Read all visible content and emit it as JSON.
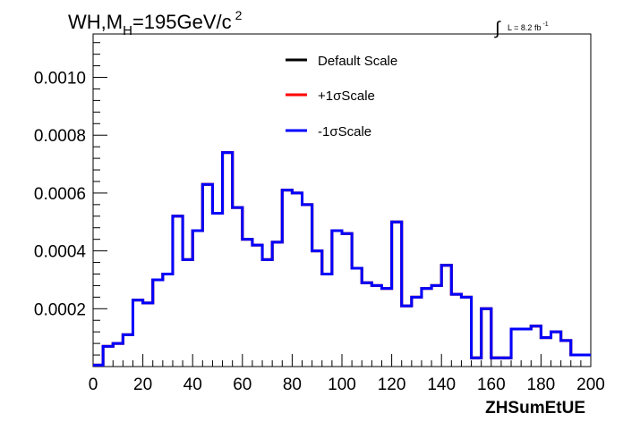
{
  "chart_data": {
    "type": "histogram",
    "title": "WH,M",
    "title_sub": "H",
    "title_tail": "=195GeV/c",
    "title_sup": "2",
    "lumi_label": "L = 8.2 fb",
    "lumi_sup": "-1",
    "xlabel": "ZHSumEtUE",
    "ylabel": "",
    "xlim": [
      0,
      200
    ],
    "ylim": [
      0,
      0.00115
    ],
    "x_ticks": [
      0,
      20,
      40,
      60,
      80,
      100,
      120,
      140,
      160,
      180,
      200
    ],
    "x_tick_labels": [
      "0",
      "20",
      "40",
      "60",
      "80",
      "100",
      "120",
      "140",
      "160",
      "180",
      "200"
    ],
    "y_ticks": [
      0.0002,
      0.0004,
      0.0006,
      0.0008,
      0.001
    ],
    "y_tick_labels": [
      "0.0002",
      "0.0004",
      "0.0006",
      "0.0008",
      "0.0010"
    ],
    "legend_position": "top-center",
    "bin_edges": [
      0,
      4,
      8,
      12,
      16,
      20,
      24,
      28,
      32,
      36,
      40,
      44,
      48,
      52,
      56,
      60,
      64,
      68,
      72,
      76,
      80,
      84,
      88,
      92,
      96,
      100,
      104,
      108,
      112,
      116,
      120,
      124,
      128,
      132,
      136,
      140,
      144,
      148,
      152,
      156,
      160,
      164,
      168,
      172,
      176,
      180,
      184,
      188,
      192,
      196,
      200
    ],
    "series": [
      {
        "name": "Default Scale",
        "color": "#000000",
        "values": [
          5e-06,
          7e-05,
          8e-05,
          0.00011,
          0.00023,
          0.00022,
          0.0003,
          0.00032,
          0.00052,
          0.00037,
          0.00047,
          0.00063,
          0.00053,
          0.00074,
          0.00055,
          0.00044,
          0.00042,
          0.00037,
          0.00043,
          0.00061,
          0.0006,
          0.00056,
          0.0004,
          0.00032,
          0.00047,
          0.00046,
          0.00034,
          0.00029,
          0.00028,
          0.00027,
          0.0005,
          0.00021,
          0.00024,
          0.00027,
          0.00028,
          0.00035,
          0.00025,
          0.00024,
          3e-05,
          0.0002,
          3e-05,
          3e-05,
          0.00013,
          0.00013,
          0.00014,
          0.0001,
          0.00012,
          9e-05,
          4e-05,
          4e-05
        ]
      },
      {
        "name": "+1σScale",
        "color": "#ff0000",
        "values": [
          5e-06,
          7e-05,
          8e-05,
          0.00011,
          0.00023,
          0.00022,
          0.0003,
          0.00032,
          0.00052,
          0.00037,
          0.00047,
          0.00063,
          0.00053,
          0.00074,
          0.00055,
          0.00044,
          0.00042,
          0.00037,
          0.00043,
          0.00061,
          0.0006,
          0.00056,
          0.0004,
          0.00032,
          0.00047,
          0.00046,
          0.00034,
          0.00029,
          0.00028,
          0.00027,
          0.0005,
          0.00021,
          0.00024,
          0.00027,
          0.00028,
          0.00035,
          0.00025,
          0.00024,
          3e-05,
          0.0002,
          3e-05,
          3e-05,
          0.00013,
          0.00013,
          0.00014,
          0.0001,
          0.00012,
          9e-05,
          4e-05,
          4e-05
        ]
      },
      {
        "name": "-1σScale",
        "color": "#0000ff",
        "values": [
          5e-06,
          7e-05,
          8e-05,
          0.00011,
          0.00023,
          0.00022,
          0.0003,
          0.00032,
          0.00052,
          0.00037,
          0.00047,
          0.00063,
          0.00053,
          0.00074,
          0.00055,
          0.00044,
          0.00042,
          0.00037,
          0.00043,
          0.00061,
          0.0006,
          0.00056,
          0.0004,
          0.00032,
          0.00047,
          0.00046,
          0.00034,
          0.00029,
          0.00028,
          0.00027,
          0.0005,
          0.00021,
          0.00024,
          0.00027,
          0.00028,
          0.00035,
          0.00025,
          0.00024,
          3e-05,
          0.0002,
          3e-05,
          3e-05,
          0.00013,
          0.00013,
          0.00014,
          0.0001,
          0.00012,
          9e-05,
          4e-05,
          4e-05
        ]
      }
    ]
  }
}
